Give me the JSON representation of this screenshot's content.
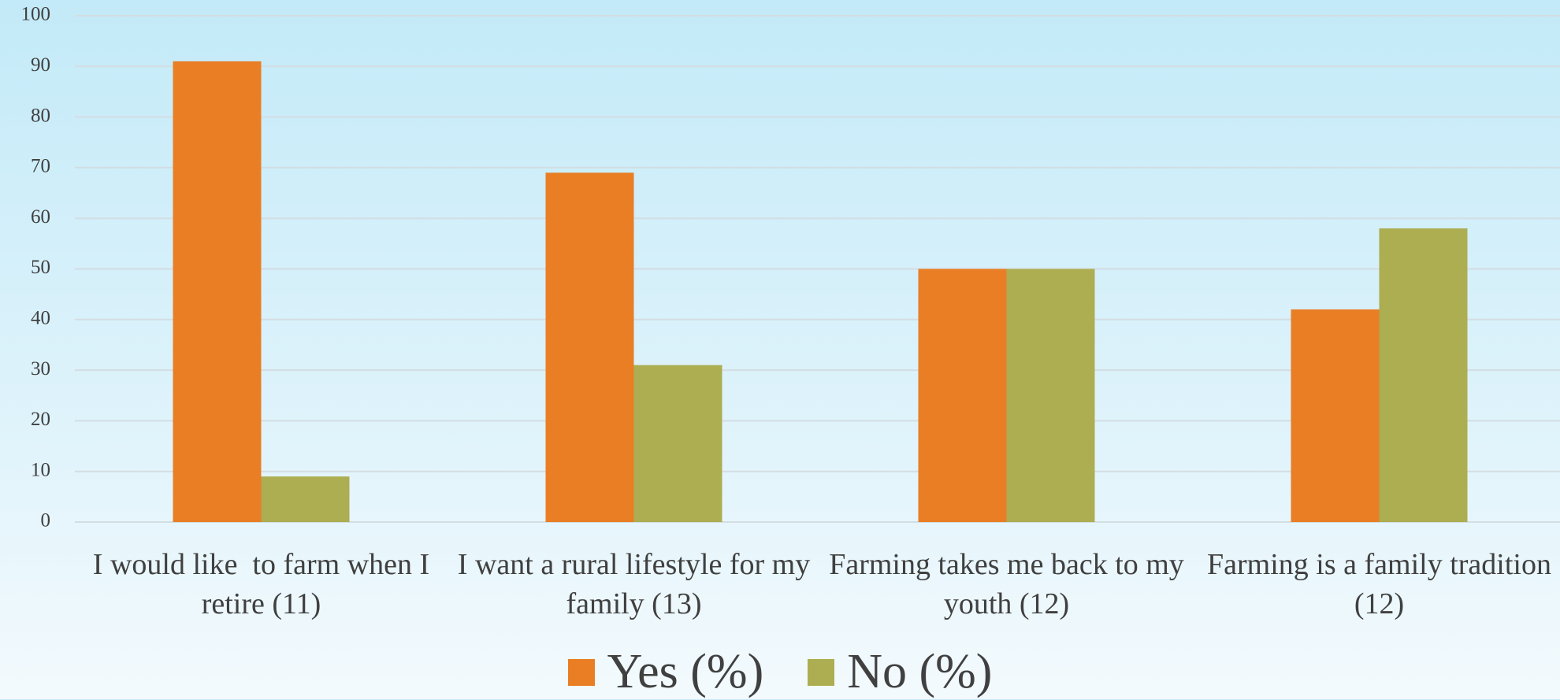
{
  "chart_data": {
    "type": "bar",
    "categories": [
      "I would like  to farm when I retire (11)",
      "I want a rural lifestyle for my family (13)",
      "Farming takes me back to my youth (12)",
      "Farming is a family tradition (12)"
    ],
    "series": [
      {
        "name": "Yes (%)",
        "color": "#e97e25",
        "values": [
          91,
          69,
          50,
          42
        ]
      },
      {
        "name": "No (%)",
        "color": "#adad52",
        "values": [
          9,
          31,
          50,
          58
        ]
      }
    ],
    "ylim": [
      0,
      100
    ],
    "yticks": [
      0,
      10,
      20,
      30,
      40,
      50,
      60,
      70,
      80,
      90,
      100
    ],
    "grid": true
  }
}
